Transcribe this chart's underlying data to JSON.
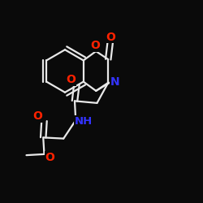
{
  "bg_color": "#0a0a0a",
  "bond_color": "#e8e8e8",
  "O_color": "#ff2200",
  "N_color": "#3333ff",
  "lw": 1.6,
  "dbo": 0.013,
  "figsize": [
    2.5,
    2.5
  ],
  "dpi": 100,
  "xlim": [
    0,
    10
  ],
  "ylim": [
    0,
    10
  ]
}
